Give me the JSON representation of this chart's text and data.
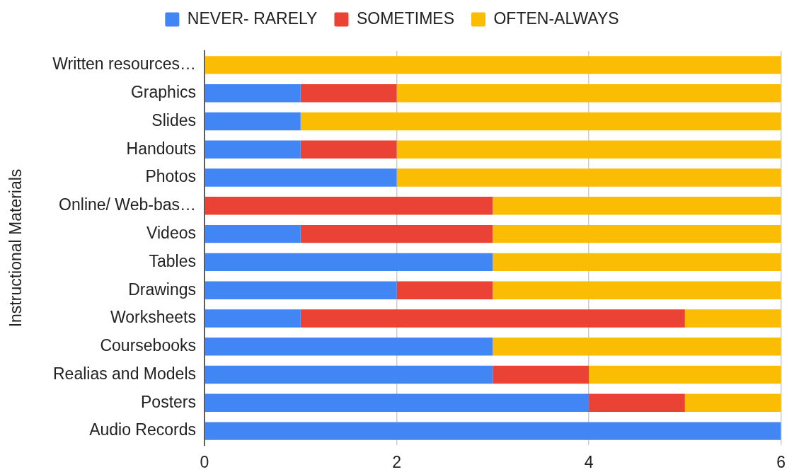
{
  "chart_data": {
    "type": "bar",
    "orientation": "horizontal",
    "stacked": true,
    "categories": [
      "Written resources…",
      "Graphics",
      "Slides",
      "Handouts",
      "Photos",
      "Online/ Web-bas…",
      "Videos",
      "Tables",
      "Drawings",
      "Worksheets",
      "Coursebooks",
      "Realias and Models",
      "Posters",
      "Audio Records"
    ],
    "series": [
      {
        "name": "NEVER- RARELY",
        "color": "#4285f4",
        "values": [
          0,
          1,
          1,
          1,
          2,
          0,
          1,
          3,
          2,
          1,
          3,
          3,
          4,
          6
        ]
      },
      {
        "name": "SOMETIMES",
        "color": "#ea4335",
        "values": [
          0,
          1,
          0,
          1,
          0,
          3,
          2,
          0,
          1,
          4,
          0,
          1,
          1,
          0
        ]
      },
      {
        "name": "OFTEN-ALWAYS",
        "color": "#fbbc04",
        "values": [
          6,
          4,
          5,
          4,
          4,
          3,
          3,
          3,
          3,
          1,
          3,
          2,
          1,
          0
        ]
      }
    ],
    "ylabel": "Instructional Materials",
    "xlim": [
      0,
      6
    ],
    "xticks": [
      0,
      2,
      4,
      6
    ],
    "grid": "x",
    "legend": "top"
  }
}
